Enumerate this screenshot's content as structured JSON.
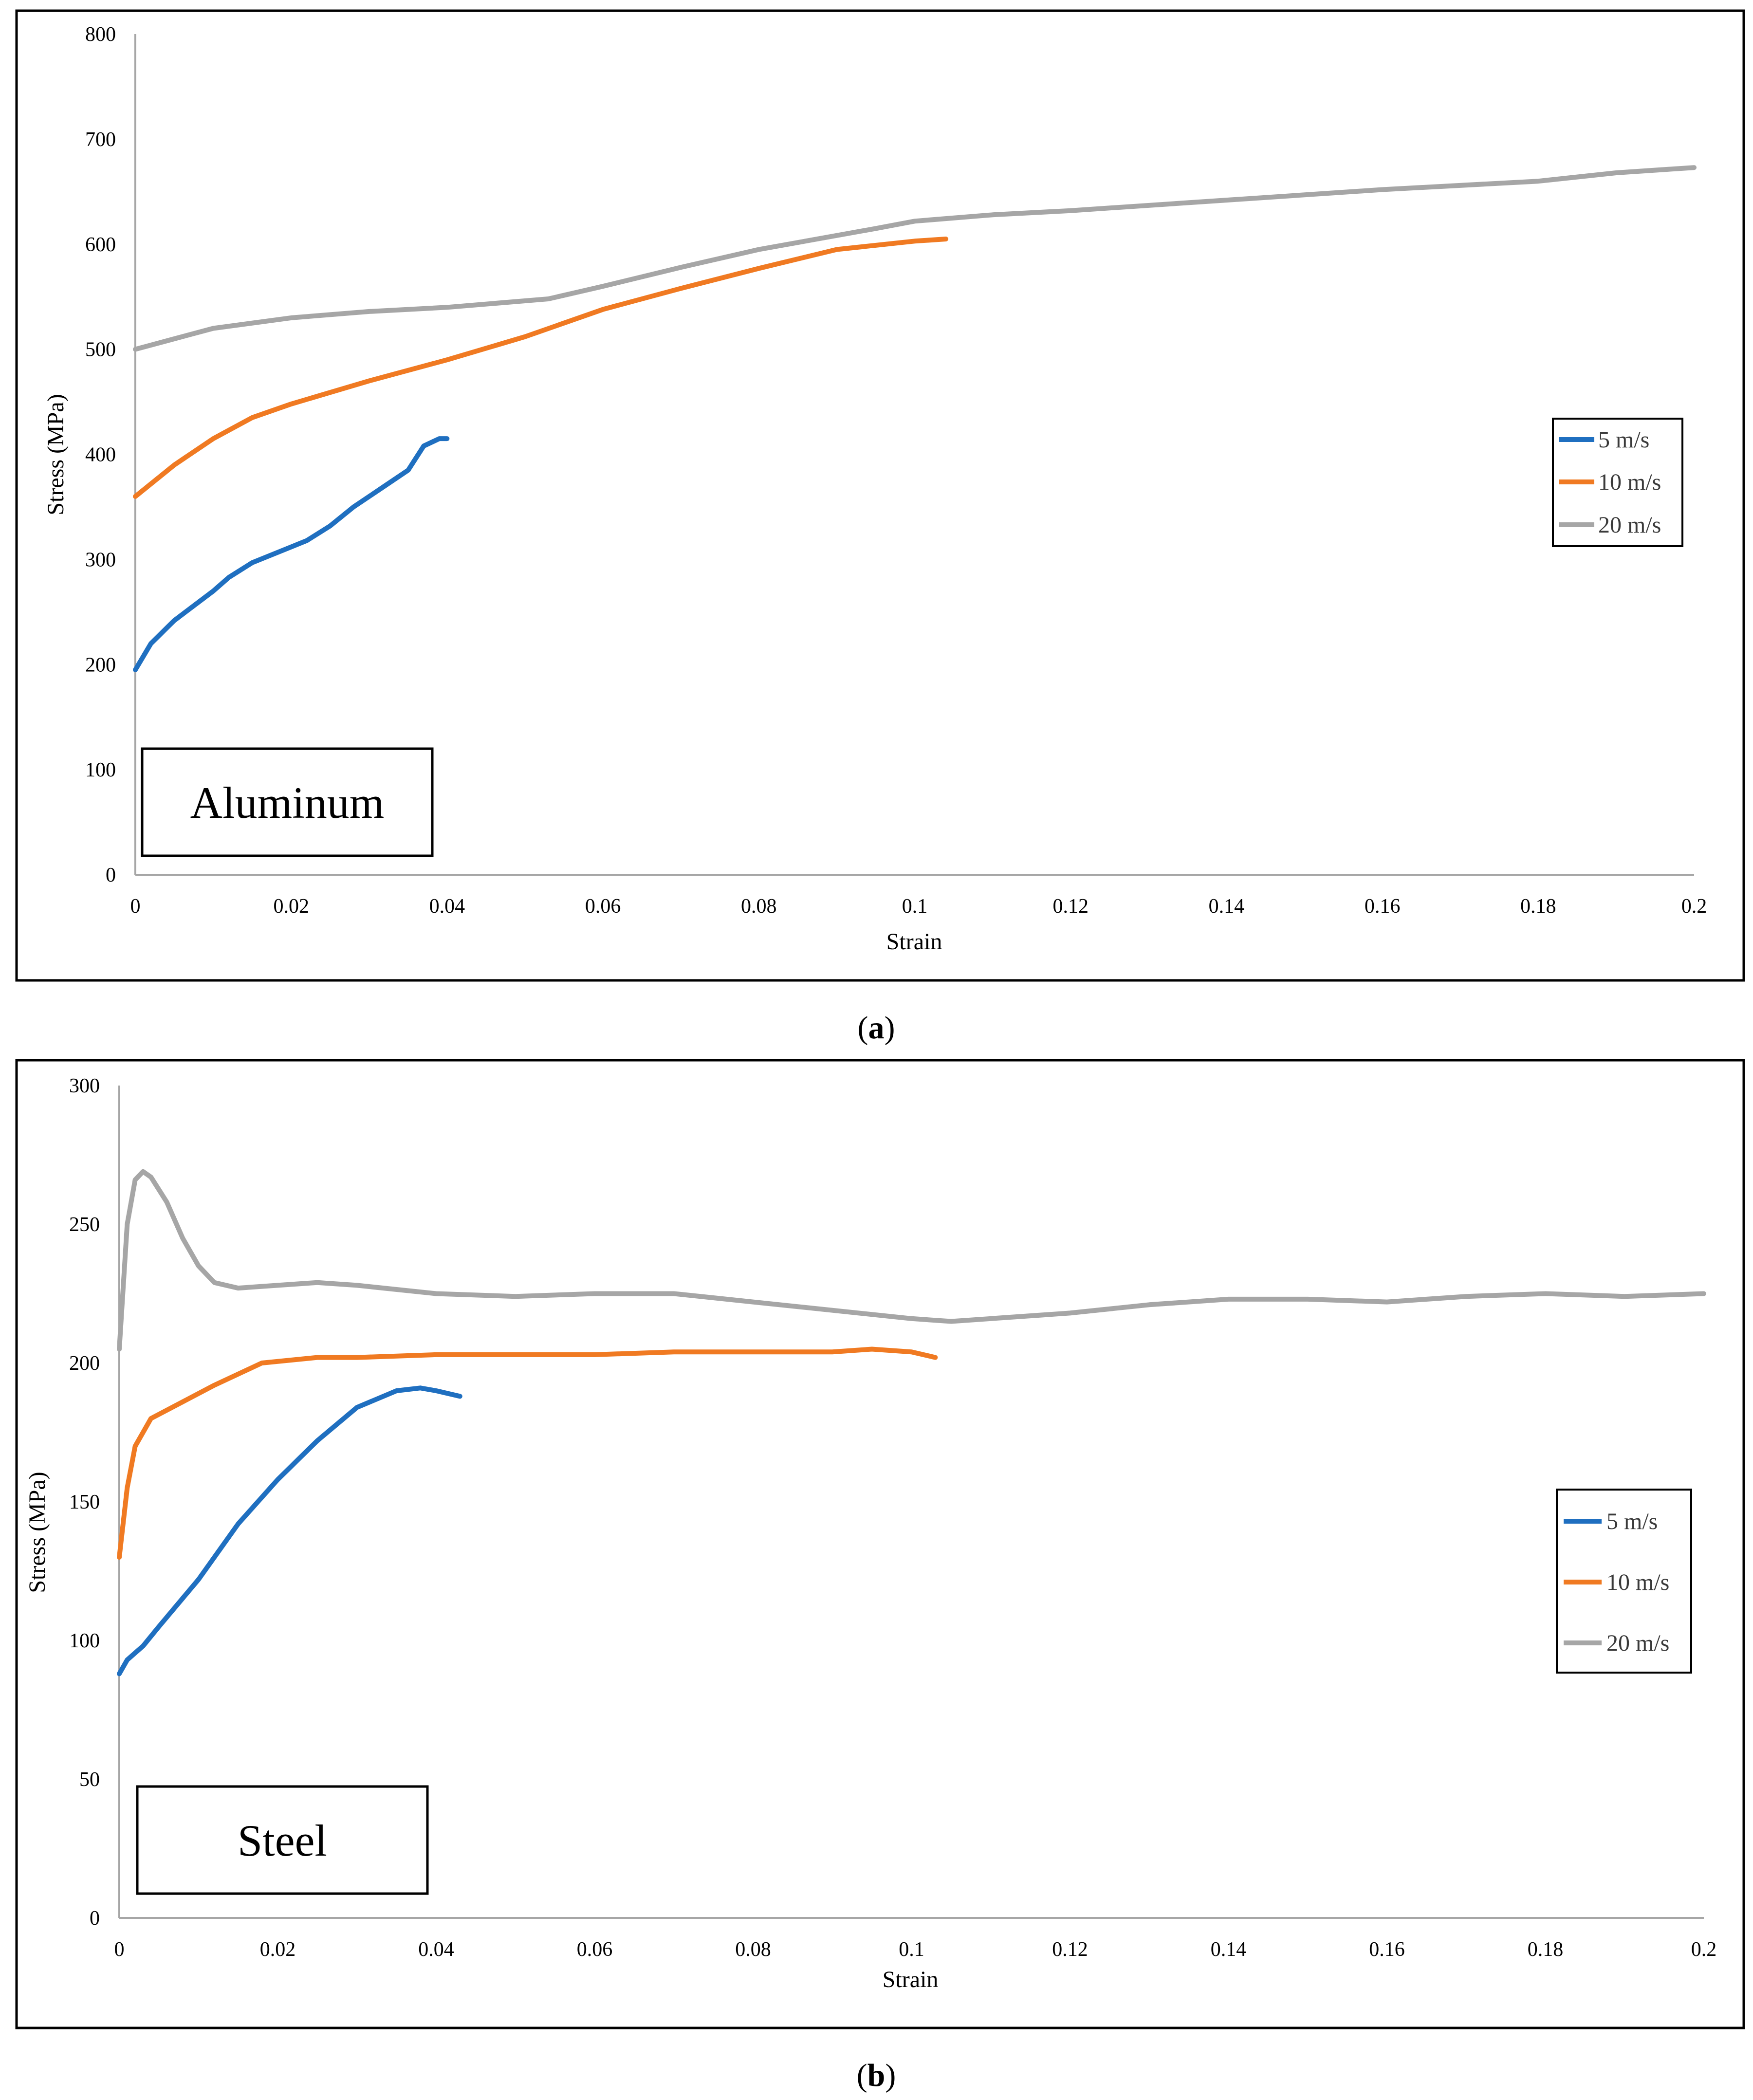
{
  "colors": {
    "series_5": "#1f6fc0",
    "series_10": "#f07a22",
    "series_20": "#a6a6a6"
  },
  "captions": [
    {
      "open": "(",
      "letter": "a",
      "close": ")"
    },
    {
      "open": "(",
      "letter": "b",
      "close": ")"
    }
  ],
  "chart_data": [
    {
      "type": "line",
      "material_label": "Aluminum",
      "xlabel": "Strain",
      "ylabel": "Stress (MPa)",
      "xlim": [
        0,
        0.2
      ],
      "ylim": [
        0,
        800
      ],
      "x_ticks": [
        "0",
        "0.02",
        "0.04",
        "0.06",
        "0.08",
        "0.1",
        "0.12",
        "0.14",
        "0.16",
        "0.18",
        "0.2"
      ],
      "y_ticks": [
        "0",
        "100",
        "200",
        "300",
        "400",
        "500",
        "600",
        "700",
        "800"
      ],
      "legend": [
        "5 m/s",
        "10 m/s",
        "20 m/s"
      ],
      "legend_position": "right",
      "series": [
        {
          "name": "5 m/s",
          "color_key": "series_5",
          "points": [
            [
              0,
              195
            ],
            [
              0.002,
              220
            ],
            [
              0.005,
              242
            ],
            [
              0.01,
              270
            ],
            [
              0.012,
              283
            ],
            [
              0.015,
              297
            ],
            [
              0.02,
              312
            ],
            [
              0.022,
              318
            ],
            [
              0.025,
              332
            ],
            [
              0.028,
              350
            ],
            [
              0.03,
              360
            ],
            [
              0.032,
              370
            ],
            [
              0.035,
              385
            ],
            [
              0.037,
              408
            ],
            [
              0.039,
              415
            ],
            [
              0.04,
              415
            ]
          ]
        },
        {
          "name": "10 m/s",
          "color_key": "series_10",
          "points": [
            [
              0,
              360
            ],
            [
              0.005,
              390
            ],
            [
              0.01,
              415
            ],
            [
              0.015,
              435
            ],
            [
              0.02,
              448
            ],
            [
              0.03,
              470
            ],
            [
              0.04,
              490
            ],
            [
              0.05,
              512
            ],
            [
              0.06,
              538
            ],
            [
              0.07,
              558
            ],
            [
              0.08,
              577
            ],
            [
              0.09,
              595
            ],
            [
              0.1,
              603
            ],
            [
              0.104,
              605
            ]
          ]
        },
        {
          "name": "20 m/s",
          "color_key": "series_20",
          "points": [
            [
              0,
              500
            ],
            [
              0.005,
              510
            ],
            [
              0.01,
              520
            ],
            [
              0.02,
              530
            ],
            [
              0.03,
              536
            ],
            [
              0.04,
              540
            ],
            [
              0.053,
              548
            ],
            [
              0.06,
              560
            ],
            [
              0.07,
              578
            ],
            [
              0.08,
              595
            ],
            [
              0.095,
              615
            ],
            [
              0.1,
              622
            ],
            [
              0.11,
              628
            ],
            [
              0.12,
              632
            ],
            [
              0.14,
              642
            ],
            [
              0.16,
              652
            ],
            [
              0.18,
              660
            ],
            [
              0.19,
              668
            ],
            [
              0.2,
              673
            ]
          ]
        }
      ]
    },
    {
      "type": "line",
      "material_label": "Steel",
      "xlabel": "Strain",
      "ylabel": "Stress (MPa)",
      "xlim": [
        0,
        0.2
      ],
      "ylim": [
        0,
        300
      ],
      "x_ticks": [
        "0",
        "0.02",
        "0.04",
        "0.06",
        "0.08",
        "0.1",
        "0.12",
        "0.14",
        "0.16",
        "0.18",
        "0.2"
      ],
      "y_ticks": [
        "0",
        "50",
        "100",
        "150",
        "200",
        "250",
        "300"
      ],
      "legend": [
        "5 m/s",
        "10 m/s",
        "20 m/s"
      ],
      "legend_position": "right",
      "series": [
        {
          "name": "5 m/s",
          "color_key": "series_5",
          "points": [
            [
              0,
              88
            ],
            [
              0.001,
              93
            ],
            [
              0.003,
              98
            ],
            [
              0.005,
              105
            ],
            [
              0.01,
              122
            ],
            [
              0.015,
              142
            ],
            [
              0.02,
              158
            ],
            [
              0.025,
              172
            ],
            [
              0.03,
              184
            ],
            [
              0.035,
              190
            ],
            [
              0.038,
              191
            ],
            [
              0.04,
              190
            ],
            [
              0.043,
              188
            ]
          ]
        },
        {
          "name": "10 m/s",
          "color_key": "series_10",
          "points": [
            [
              0,
              130
            ],
            [
              0.001,
              155
            ],
            [
              0.002,
              170
            ],
            [
              0.004,
              180
            ],
            [
              0.008,
              186
            ],
            [
              0.012,
              192
            ],
            [
              0.018,
              200
            ],
            [
              0.025,
              202
            ],
            [
              0.03,
              202
            ],
            [
              0.04,
              203
            ],
            [
              0.05,
              203
            ],
            [
              0.06,
              203
            ],
            [
              0.07,
              204
            ],
            [
              0.08,
              204
            ],
            [
              0.09,
              204
            ],
            [
              0.095,
              205
            ],
            [
              0.1,
              204
            ],
            [
              0.103,
              202
            ]
          ]
        },
        {
          "name": "20 m/s",
          "color_key": "series_20",
          "points": [
            [
              0,
              205
            ],
            [
              0.001,
              250
            ],
            [
              0.002,
              266
            ],
            [
              0.003,
              269
            ],
            [
              0.004,
              267
            ],
            [
              0.006,
              258
            ],
            [
              0.008,
              245
            ],
            [
              0.01,
              235
            ],
            [
              0.012,
              229
            ],
            [
              0.015,
              227
            ],
            [
              0.02,
              228
            ],
            [
              0.025,
              229
            ],
            [
              0.03,
              228
            ],
            [
              0.04,
              225
            ],
            [
              0.05,
              224
            ],
            [
              0.06,
              225
            ],
            [
              0.07,
              225
            ],
            [
              0.08,
              222
            ],
            [
              0.09,
              219
            ],
            [
              0.1,
              216
            ],
            [
              0.105,
              215
            ],
            [
              0.11,
              216
            ],
            [
              0.12,
              218
            ],
            [
              0.13,
              221
            ],
            [
              0.14,
              223
            ],
            [
              0.15,
              223
            ],
            [
              0.16,
              222
            ],
            [
              0.17,
              224
            ],
            [
              0.18,
              225
            ],
            [
              0.19,
              224
            ],
            [
              0.2,
              225
            ]
          ]
        }
      ]
    }
  ]
}
